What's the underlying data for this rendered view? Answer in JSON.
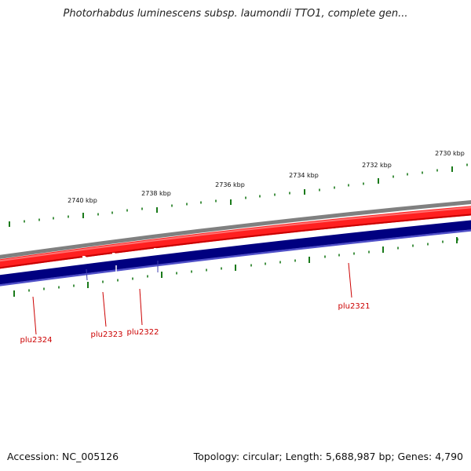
{
  "title": "Photorhabdus luminescens subsp. laumondii TTO1, complete gen...",
  "footer": {
    "accession": "Accession: NC_005126",
    "summary": "Topology: circular; Length: 5,688,987 bp; Genes: 4,790"
  },
  "colors": {
    "backbone": "#808080",
    "forward_strand": "#ff0000",
    "reverse_strand": "#000080",
    "tick": "#1a7a1a",
    "label": "#cc0000"
  },
  "ruler": {
    "labels": [
      "2740 kbp",
      "2738 kbp",
      "2736 kbp",
      "2734 kbp",
      "2732 kbp",
      "2730 kbp"
    ]
  },
  "genes": [
    {
      "name": "plu2324",
      "strand": "reverse"
    },
    {
      "name": "plu2323",
      "strand": "reverse"
    },
    {
      "name": "plu2322",
      "strand": "reverse"
    },
    {
      "name": "plu2321",
      "strand": "reverse"
    }
  ]
}
